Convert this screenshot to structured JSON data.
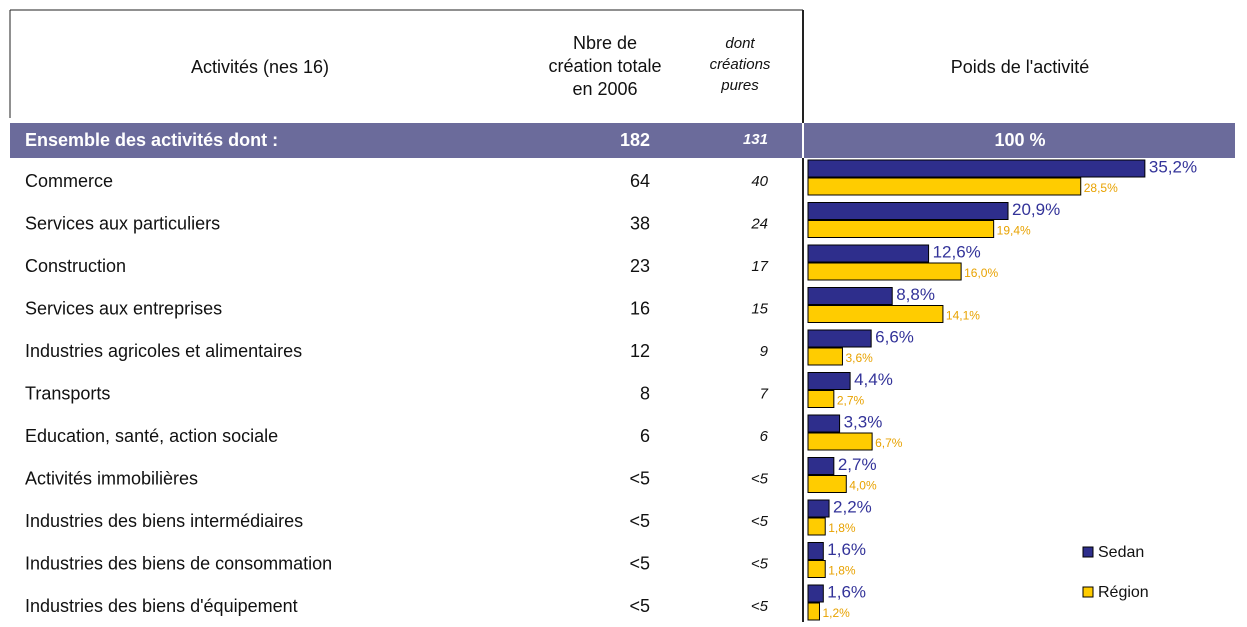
{
  "header": {
    "activity": "Activités (nes 16)",
    "total": [
      "Nbre de",
      "création totale",
      "en 2006"
    ],
    "pures": [
      "dont",
      "créations",
      "pures"
    ],
    "weight": "Poids de l'activité"
  },
  "summary": {
    "name": "Ensemble des activités dont :",
    "total": 182,
    "pures": 131,
    "weight": "100 %"
  },
  "legend": {
    "sedan": "Sedan",
    "region": "Région",
    "sedan_color": "#2e2e8c",
    "region_color": "#ffcc00"
  },
  "rows": [
    {
      "name": "Commerce",
      "total": 64,
      "pures": 40,
      "sedan": {
        "value": 35.2,
        "label": "35,2%"
      },
      "region": {
        "value": 28.5,
        "label": "28,5%"
      }
    },
    {
      "name": "Services aux particuliers",
      "total": 38,
      "pures": 24,
      "sedan": {
        "value": 20.9,
        "label": "20,9%"
      },
      "region": {
        "value": 19.4,
        "label": "19,4%"
      }
    },
    {
      "name": "Construction",
      "total": 23,
      "pures": 17,
      "sedan": {
        "value": 12.6,
        "label": "12,6%"
      },
      "region": {
        "value": 16.0,
        "label": "16,0%"
      }
    },
    {
      "name": "Services aux entreprises",
      "total": 16,
      "pures": 15,
      "sedan": {
        "value": 8.8,
        "label": "8,8%"
      },
      "region": {
        "value": 14.1,
        "label": "14,1%"
      }
    },
    {
      "name": "Industries agricoles et alimentaires",
      "total": 12,
      "pures": 9,
      "sedan": {
        "value": 6.6,
        "label": "6,6%"
      },
      "region": {
        "value": 3.6,
        "label": "3,6%"
      }
    },
    {
      "name": "Transports",
      "total": 8,
      "pures": 7,
      "sedan": {
        "value": 4.4,
        "label": "4,4%"
      },
      "region": {
        "value": 2.7,
        "label": "2,7%"
      }
    },
    {
      "name": "Education, santé, action sociale",
      "total": 6,
      "pures": 6,
      "sedan": {
        "value": 3.3,
        "label": "3,3%"
      },
      "region": {
        "value": 6.7,
        "label": "6,7%"
      }
    },
    {
      "name": "Activités immobilières",
      "total": "<5",
      "pures": "<5",
      "sedan": {
        "value": 2.7,
        "label": "2,7%"
      },
      "region": {
        "value": 4.0,
        "label": "4,0%"
      }
    },
    {
      "name": "Industries des biens intermédiaires",
      "total": "<5",
      "pures": "<5",
      "sedan": {
        "value": 2.2,
        "label": "2,2%"
      },
      "region": {
        "value": 1.8,
        "label": "1,8%"
      }
    },
    {
      "name": "Industries des biens de consommation",
      "total": "<5",
      "pures": "<5",
      "sedan": {
        "value": 1.6,
        "label": "1,6%"
      },
      "region": {
        "value": 1.8,
        "label": "1,8%"
      }
    },
    {
      "name": "Industries des biens d'équipement",
      "total": "<5",
      "pures": "<5",
      "sedan": {
        "value": 1.6,
        "label": "1,6%"
      },
      "region": {
        "value": 1.2,
        "label": "1,2%"
      }
    }
  ]
}
